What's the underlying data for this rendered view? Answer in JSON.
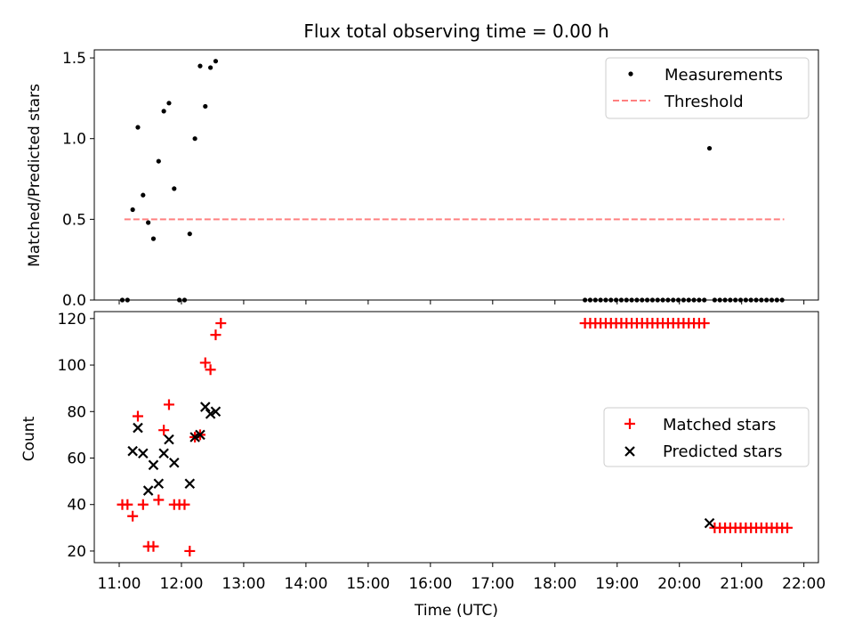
{
  "figure": {
    "title": "Flux total observing time = 0.00 h",
    "xlabel": "Time (UTC)"
  },
  "chart_data": [
    {
      "type": "scatter",
      "ylabel": "Matched/Predicted stars",
      "xlim": [
        "10:36",
        "22:14"
      ],
      "ylim": [
        0,
        1.55
      ],
      "x_ticks": [
        "11:00",
        "12:00",
        "13:00",
        "14:00",
        "15:00",
        "16:00",
        "17:00",
        "18:00",
        "19:00",
        "20:00",
        "21:00",
        "22:00"
      ],
      "x_tick_labels_shown": false,
      "y_ticks": [
        "0.0",
        "0.5",
        "1.0",
        "1.5"
      ],
      "grid": false,
      "legend": {
        "placement": "top-right",
        "entries": [
          "Measurements",
          "Threshold"
        ]
      },
      "threshold": {
        "name": "Threshold",
        "value": 0.5,
        "x_start": "11:05",
        "x_end": "21:41",
        "color": "#ff8080",
        "style": "dashed"
      },
      "series": [
        {
          "name": "Measurements",
          "color": "#000000",
          "marker": "dot",
          "x": [
            "11:03",
            "11:08",
            "11:13",
            "11:18",
            "11:23",
            "11:28",
            "11:33",
            "11:38",
            "11:43",
            "11:48",
            "11:53",
            "11:58",
            "12:03",
            "12:08",
            "12:13",
            "12:18",
            "12:23",
            "12:28",
            "12:33",
            "12:38",
            "12:43",
            "18:29",
            "18:34",
            "18:39",
            "18:44",
            "18:49",
            "18:54",
            "18:59",
            "19:04",
            "19:09",
            "19:14",
            "19:19",
            "19:24",
            "19:29",
            "19:34",
            "19:39",
            "19:44",
            "19:49",
            "19:54",
            "19:59",
            "20:04",
            "20:09",
            "20:14",
            "20:19",
            "20:24",
            "20:29",
            "20:34",
            "20:39",
            "20:44",
            "20:49",
            "20:54",
            "20:59",
            "21:04",
            "21:09",
            "21:14",
            "21:19",
            "21:24",
            "21:29",
            "21:34",
            "21:39"
          ],
          "y": [
            0,
            0,
            0.56,
            1.07,
            0.65,
            0.48,
            0.38,
            0.86,
            1.17,
            1.22,
            0.69,
            0,
            0,
            0.41,
            1.0,
            1.45,
            1.2,
            1.44,
            1.48,
            null,
            null,
            0,
            0,
            0,
            0,
            0,
            0,
            0,
            0,
            0,
            0,
            0,
            0,
            0,
            0,
            0,
            0,
            0,
            0,
            0,
            0,
            0,
            0,
            0,
            0,
            0.94,
            0,
            0,
            0,
            0,
            0,
            0,
            0,
            0,
            0,
            0,
            0,
            0,
            0,
            0
          ]
        }
      ]
    },
    {
      "type": "scatter",
      "ylabel": "Count",
      "xlim": [
        "10:36",
        "22:14"
      ],
      "ylim": [
        15,
        123
      ],
      "x_ticks": [
        "11:00",
        "12:00",
        "13:00",
        "14:00",
        "15:00",
        "16:00",
        "17:00",
        "18:00",
        "19:00",
        "20:00",
        "21:00",
        "22:00"
      ],
      "y_ticks": [
        "20",
        "40",
        "60",
        "80",
        "100",
        "120"
      ],
      "grid": false,
      "legend": {
        "placement": "center-right",
        "entries": [
          "Matched stars",
          "Predicted stars"
        ]
      },
      "series": [
        {
          "name": "Matched stars",
          "color": "#ff0000",
          "marker": "plus",
          "points": [
            [
              "11:03",
              40
            ],
            [
              "11:08",
              40
            ],
            [
              "11:13",
              35
            ],
            [
              "11:18",
              78
            ],
            [
              "11:23",
              40
            ],
            [
              "11:28",
              22
            ],
            [
              "11:33",
              22
            ],
            [
              "11:38",
              42
            ],
            [
              "11:43",
              72
            ],
            [
              "11:48",
              83
            ],
            [
              "11:53",
              40
            ],
            [
              "11:58",
              40
            ],
            [
              "12:03",
              40
            ],
            [
              "12:08",
              20
            ],
            [
              "12:13",
              69
            ],
            [
              "12:18",
              70
            ],
            [
              "12:23",
              101
            ],
            [
              "12:28",
              98
            ],
            [
              "12:33",
              113
            ],
            [
              "12:38",
              118
            ],
            [
              "18:29",
              118
            ],
            [
              "18:34",
              118
            ],
            [
              "18:39",
              118
            ],
            [
              "18:44",
              118
            ],
            [
              "18:49",
              118
            ],
            [
              "18:54",
              118
            ],
            [
              "18:59",
              118
            ],
            [
              "19:04",
              118
            ],
            [
              "19:09",
              118
            ],
            [
              "19:14",
              118
            ],
            [
              "19:19",
              118
            ],
            [
              "19:24",
              118
            ],
            [
              "19:29",
              118
            ],
            [
              "19:34",
              118
            ],
            [
              "19:39",
              118
            ],
            [
              "19:44",
              118
            ],
            [
              "19:49",
              118
            ],
            [
              "19:54",
              118
            ],
            [
              "19:59",
              118
            ],
            [
              "20:04",
              118
            ],
            [
              "20:09",
              118
            ],
            [
              "20:14",
              118
            ],
            [
              "20:19",
              118
            ],
            [
              "20:24",
              118
            ],
            [
              "20:34",
              30
            ],
            [
              "20:39",
              30
            ],
            [
              "20:44",
              30
            ],
            [
              "20:49",
              30
            ],
            [
              "20:54",
              30
            ],
            [
              "20:59",
              30
            ],
            [
              "21:04",
              30
            ],
            [
              "21:09",
              30
            ],
            [
              "21:14",
              30
            ],
            [
              "21:19",
              30
            ],
            [
              "21:24",
              30
            ],
            [
              "21:29",
              30
            ],
            [
              "21:34",
              30
            ],
            [
              "21:39",
              30
            ],
            [
              "21:44",
              30
            ]
          ]
        },
        {
          "name": "Predicted stars",
          "color": "#000000",
          "marker": "x",
          "points": [
            [
              "11:13",
              63
            ],
            [
              "11:18",
              73
            ],
            [
              "11:23",
              62
            ],
            [
              "11:28",
              46
            ],
            [
              "11:33",
              57
            ],
            [
              "11:38",
              49
            ],
            [
              "11:43",
              62
            ],
            [
              "11:48",
              68
            ],
            [
              "11:53",
              58
            ],
            [
              "12:08",
              49
            ],
            [
              "12:13",
              69
            ],
            [
              "12:18",
              70
            ],
            [
              "12:23",
              82
            ],
            [
              "12:28",
              79
            ],
            [
              "12:33",
              80
            ],
            [
              "20:29",
              32
            ]
          ]
        }
      ]
    }
  ]
}
